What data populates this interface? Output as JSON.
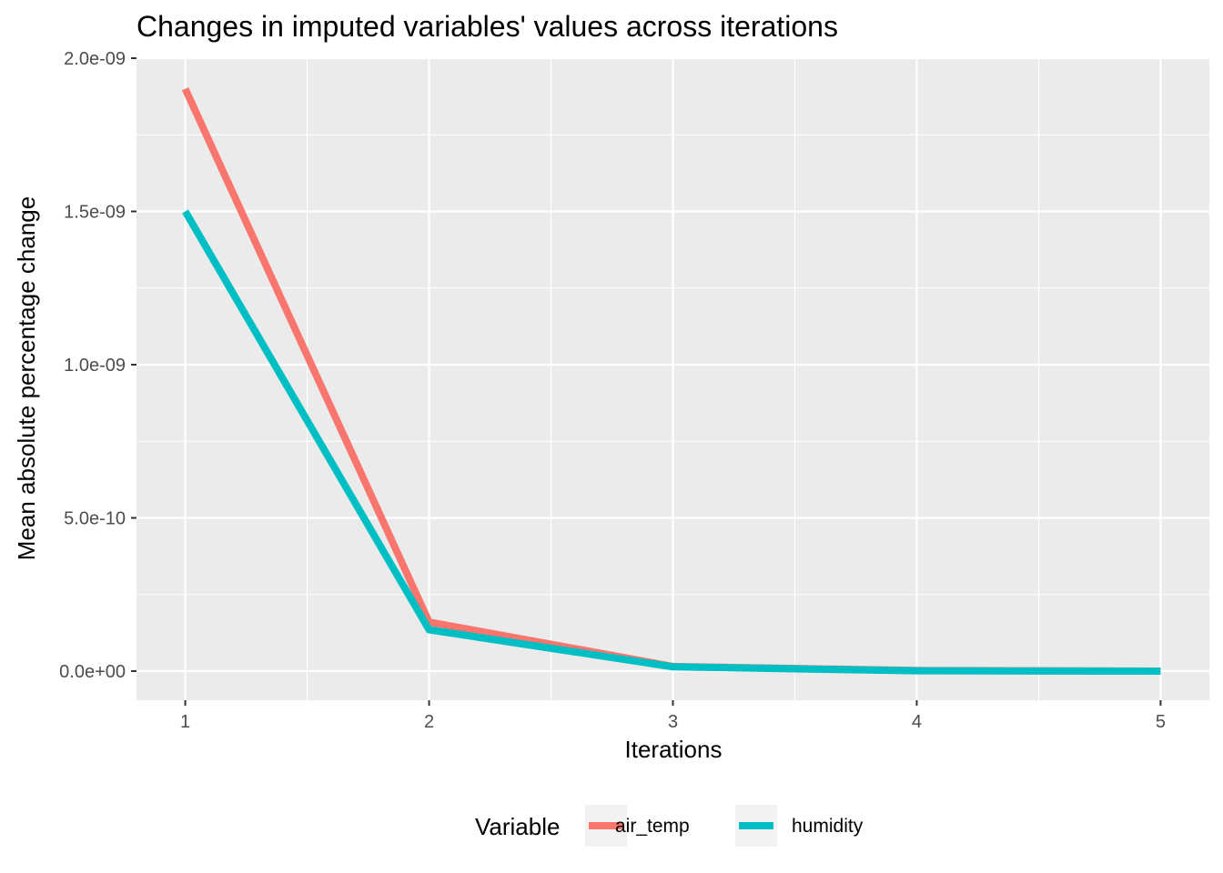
{
  "chart_data": {
    "type": "line",
    "title": "Changes in imputed variables' values across iterations",
    "xlabel": "Iterations",
    "ylabel": "Mean absolute percentage change",
    "x": [
      1,
      2,
      3,
      4,
      5
    ],
    "x_tick_labels": [
      "1",
      "2",
      "3",
      "4",
      "5"
    ],
    "xlim": [
      0.8,
      5.2
    ],
    "y_ticks": [
      0,
      5e-10,
      1e-09,
      1.5e-09,
      2e-09
    ],
    "y_tick_labels": [
      "0.0e+00",
      "5.0e-10",
      "1.0e-09",
      "1.5e-09",
      "2.0e-09"
    ],
    "ylim": [
      -9.5e-11,
      2e-09
    ],
    "grid": true,
    "legend": {
      "title": "Variable",
      "position": "bottom"
    },
    "series": [
      {
        "name": "air_temp",
        "color": "#F8766D",
        "values": [
          1.9e-09,
          1.6e-10,
          1.5e-11,
          2e-12,
          0
        ]
      },
      {
        "name": "humidity",
        "color": "#00BFC4",
        "values": [
          1.5e-09,
          1.35e-10,
          1.4e-11,
          1e-12,
          0
        ]
      }
    ]
  }
}
